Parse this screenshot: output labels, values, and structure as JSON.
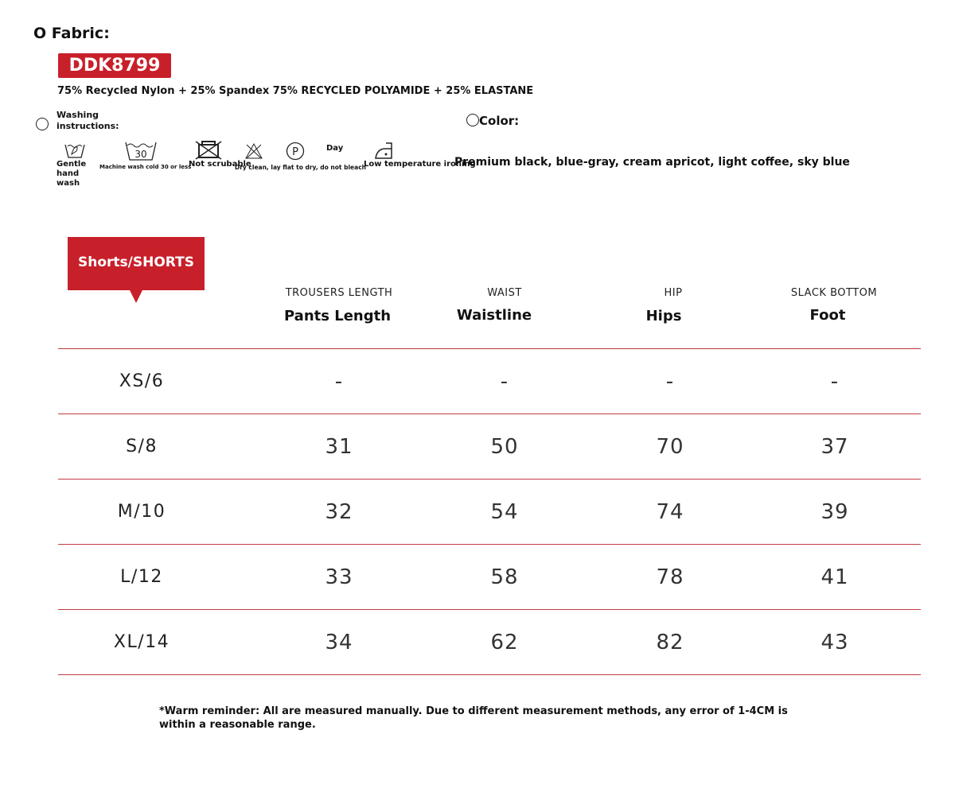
{
  "fabric": {
    "title": "O Fabric:",
    "code": "DDK8799",
    "composition": "75% Recycled Nylon + 25% Spandex 75% RECYCLED POLYAMIDE + 25% ELASTANE"
  },
  "washing": {
    "title_line1": "Washing",
    "title_line2": "instructions:",
    "icons": [
      {
        "icon": "hand-wash-icon",
        "label": "Gentle hand wash"
      },
      {
        "icon": "machine-wash-30-icon",
        "label": "Machine wash cold 30 or less",
        "number": "30"
      },
      {
        "icon": "do-not-tumble-icon",
        "label": "Not scrubable"
      },
      {
        "icon": "do-not-bleach-icon",
        "label": "Dry clean, lay flat to dry, do not bleach"
      },
      {
        "icon": "dry-clean-p-icon",
        "label": "P"
      },
      {
        "icon": "day-text",
        "label": "Day"
      },
      {
        "icon": "low-iron-icon",
        "label": "Low temperature ironing"
      }
    ]
  },
  "color": {
    "label": "Color:",
    "values": "Premium black, blue-gray, cream apricot, light coffee, sky blue"
  },
  "accent": "#c8202a",
  "table": {
    "tag": "Shorts/SHORTS",
    "headers": [
      {
        "sub": "TROUSERS LENGTH",
        "main": "Pants Length"
      },
      {
        "sub": "WAIST",
        "main": "Waistline"
      },
      {
        "sub": "HIP",
        "main": "Hips"
      },
      {
        "sub": "SLACK BOTTOM",
        "main": "Foot"
      }
    ],
    "rows": [
      {
        "size": "XS/6",
        "values": [
          "-",
          "-",
          "-",
          "-"
        ]
      },
      {
        "size": "S/8",
        "values": [
          "31",
          "50",
          "70",
          "37"
        ]
      },
      {
        "size": "M/10",
        "values": [
          "32",
          "54",
          "74",
          "39"
        ]
      },
      {
        "size": "L/12",
        "values": [
          "33",
          "58",
          "78",
          "41"
        ]
      },
      {
        "size": "XL/14",
        "values": [
          "34",
          "62",
          "82",
          "43"
        ]
      }
    ]
  },
  "note": "*Warm reminder: All are measured manually. Due to different measurement methods, any error of 1-4CM is within a reasonable range."
}
